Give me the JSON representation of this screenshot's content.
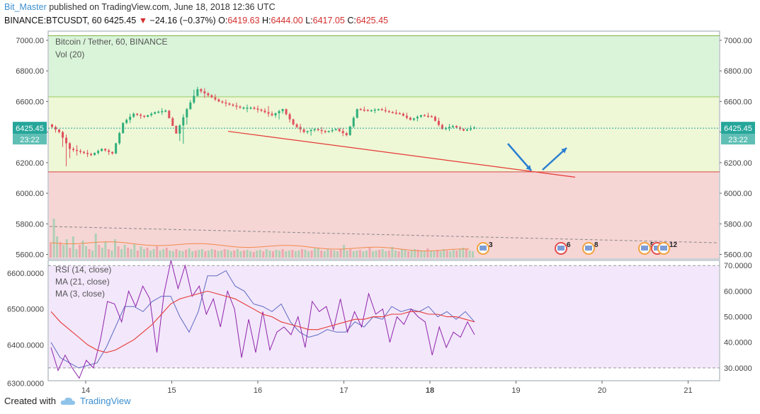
{
  "header": {
    "user": "Bit_Master",
    "published": "published on TradingView.com, June 18, 2018 12:36 UTC",
    "symbol": "BINANCE:BTCUSDT, 60",
    "last": "6425.45",
    "change": "−24.16 (−0.37%)",
    "o_label": "O:",
    "o": "6419.63",
    "h_label": "H:",
    "h": "6444.00",
    "l_label": "L:",
    "l": "6417.05",
    "c_label": "C:",
    "c": "6425.45"
  },
  "footer": {
    "created_with": "Created with",
    "brand": "TradingView"
  },
  "colors": {
    "up": "#2eae7a",
    "down": "#e0505c",
    "zone_top": "#d9f4d9",
    "zone_mid": "#eef7d6",
    "zone_low": "#f6d5d5",
    "rsi_bg": "#f3e7fb",
    "rsi_line": "#8e24aa",
    "ma21": "#e53935",
    "ma3": "#5c6bc0",
    "trend": "#e53935",
    "arrow": "#2a7fd1",
    "accent": "#26a69a"
  },
  "chart_data": [
    {
      "type": "candlestick",
      "title": "Bitcoin / Tether, 60, BINANCE",
      "indicator": "Vol (20)",
      "y_ticks": [
        "7000.00",
        "6800.00",
        "6600.00",
        "6400.00",
        "6200.00",
        "6000.00",
        "5800.00",
        "5600.00"
      ],
      "ylim": [
        5570,
        7060
      ],
      "x_ticks": [
        "14",
        "15",
        "16",
        "17",
        "18",
        "19",
        "20",
        "21"
      ],
      "last_price_label": "6425.45",
      "countdown_label": "23:22",
      "horizontal_levels": [
        7030,
        6630,
        6140
      ],
      "trendline": {
        "from": [
          "Jun 15 17:00",
          6405
        ],
        "to": [
          "Jun 19 15:00",
          6105
        ]
      },
      "event_markers": [
        "3",
        "6",
        "8",
        "5",
        "2",
        "12"
      ],
      "candles_ohlc_sample": [
        [
          6450,
          6460,
          6380,
          6400
        ],
        [
          6400,
          6420,
          6140,
          6290
        ],
        [
          6290,
          6320,
          6240,
          6270
        ],
        [
          6270,
          6290,
          6230,
          6250
        ],
        [
          6250,
          6300,
          6240,
          6290
        ],
        [
          6290,
          6300,
          6240,
          6260
        ],
        [
          6260,
          6470,
          6250,
          6460
        ],
        [
          6460,
          6540,
          6440,
          6520
        ],
        [
          6520,
          6530,
          6480,
          6500
        ],
        [
          6500,
          6540,
          6490,
          6530
        ],
        [
          6530,
          6560,
          6510,
          6540
        ],
        [
          6540,
          6550,
          6400,
          6390
        ],
        [
          6390,
          6570,
          6270,
          6550
        ],
        [
          6550,
          6720,
          6540,
          6680
        ],
        [
          6680,
          6700,
          6610,
          6640
        ],
        [
          6640,
          6660,
          6590,
          6600
        ],
        [
          6600,
          6620,
          6560,
          6580
        ],
        [
          6580,
          6600,
          6540,
          6560
        ],
        [
          6560,
          6580,
          6530,
          6560
        ],
        [
          6560,
          6580,
          6520,
          6540
        ],
        [
          6540,
          6580,
          6490,
          6510
        ],
        [
          6510,
          6560,
          6470,
          6550
        ],
        [
          6550,
          6560,
          6430,
          6450
        ],
        [
          6450,
          6470,
          6380,
          6400
        ],
        [
          6400,
          6430,
          6370,
          6420
        ],
        [
          6420,
          6440,
          6380,
          6400
        ],
        [
          6400,
          6430,
          6390,
          6420
        ],
        [
          6420,
          6440,
          6360,
          6380
        ],
        [
          6380,
          6560,
          6370,
          6550
        ],
        [
          6550,
          6570,
          6530,
          6540
        ],
        [
          6540,
          6560,
          6520,
          6550
        ],
        [
          6550,
          6570,
          6520,
          6530
        ],
        [
          6530,
          6550,
          6510,
          6520
        ],
        [
          6520,
          6540,
          6470,
          6480
        ],
        [
          6480,
          6520,
          6460,
          6510
        ],
        [
          6510,
          6530,
          6490,
          6500
        ],
        [
          6500,
          6520,
          6410,
          6420
        ],
        [
          6420,
          6460,
          6400,
          6440
        ],
        [
          6440,
          6450,
          6400,
          6410
        ],
        [
          6410,
          6450,
          6400,
          6430
        ]
      ]
    },
    {
      "type": "line",
      "title": "RSI (14, close)",
      "series_labels": [
        "RSI (14, close)",
        "MA (21, close)",
        "MA (3, close)"
      ],
      "left_ticks": [
        "6600.0000",
        "6500.0000",
        "6400.0000",
        "6300.0000"
      ],
      "right_ticks": [
        "70.0000",
        "60.0000",
        "50.0000",
        "40.0000",
        "30.0000"
      ],
      "ylim": [
        25,
        72
      ],
      "levels": [
        70,
        30
      ],
      "rsi": [
        38,
        29,
        35,
        30,
        26,
        33,
        30,
        41,
        56,
        55,
        48,
        60,
        54,
        62,
        57,
        36,
        59,
        72,
        61,
        70,
        58,
        62,
        51,
        57,
        46,
        60,
        53,
        34,
        49,
        36,
        52,
        37,
        44,
        46,
        43,
        50,
        38,
        56,
        52,
        54,
        45,
        57,
        44,
        52,
        46,
        59,
        51,
        53,
        40,
        50,
        47,
        53,
        50,
        48,
        35,
        46,
        38,
        44,
        42,
        48,
        43
      ],
      "ma21": [
        52,
        48,
        45,
        42,
        39,
        37,
        36,
        37,
        39,
        41,
        44,
        47,
        51,
        55,
        57,
        58,
        59,
        60,
        59,
        58,
        57,
        55,
        53,
        51,
        50,
        48,
        47,
        46,
        45,
        45,
        46,
        47,
        48,
        49,
        49,
        50,
        50,
        51,
        51,
        52,
        52,
        51,
        51,
        50,
        50,
        49,
        48
      ],
      "ma3": [
        40,
        34,
        32,
        30,
        31,
        32,
        38,
        46,
        54,
        54,
        52,
        56,
        58,
        58,
        50,
        44,
        52,
        66,
        66,
        68,
        62,
        60,
        55,
        54,
        52,
        55,
        48,
        44,
        42,
        43,
        45,
        44,
        44,
        48,
        46,
        50,
        49,
        54,
        52,
        53,
        52,
        54,
        50,
        52,
        49,
        52,
        48
      ]
    }
  ]
}
